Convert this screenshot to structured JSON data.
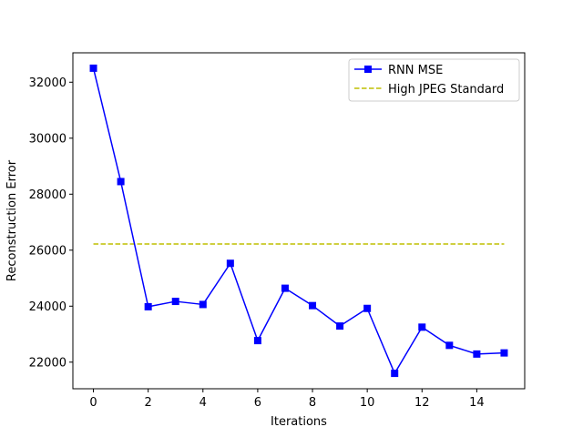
{
  "chart_data": {
    "type": "line",
    "xlabel": "Iterations",
    "ylabel": "Reconstruction Error",
    "xlim": [
      -0.75,
      15.75
    ],
    "ylim": [
      21050,
      33050
    ],
    "x_ticks": [
      0,
      2,
      4,
      6,
      8,
      10,
      12,
      14
    ],
    "y_ticks": [
      22000,
      24000,
      26000,
      28000,
      30000,
      32000
    ],
    "grid": false,
    "legend_position": "top-right",
    "series": [
      {
        "name": "RNN MSE",
        "color": "#0000ff",
        "marker": "square",
        "line_style": "solid",
        "x": [
          0,
          1,
          2,
          3,
          4,
          5,
          6,
          7,
          8,
          9,
          10,
          11,
          12,
          13,
          14,
          15
        ],
        "values": [
          32500,
          28450,
          23980,
          24170,
          24060,
          25530,
          22770,
          24640,
          24020,
          23290,
          23920,
          21600,
          23250,
          22600,
          22290,
          22330
        ]
      },
      {
        "name": "High JPEG Standard",
        "color": "#bfbf00",
        "marker": "none",
        "line_style": "dashed",
        "x": [
          0,
          15
        ],
        "values": [
          26220,
          26220
        ]
      }
    ]
  }
}
